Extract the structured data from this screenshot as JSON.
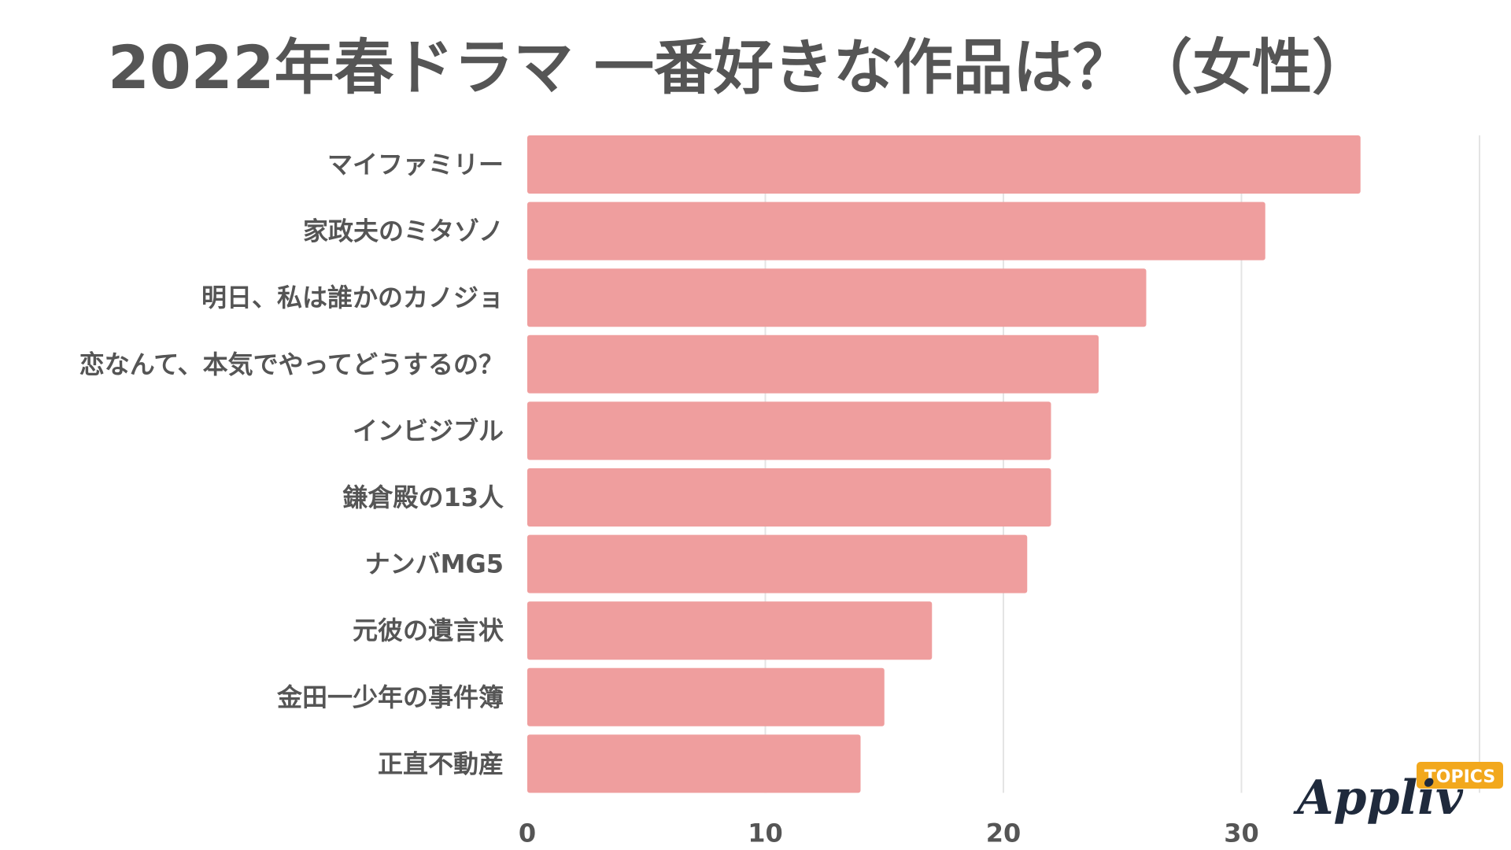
{
  "chart_data": {
    "type": "bar",
    "orientation": "horizontal",
    "title": "2022年春ドラマ 一番好きな作品は？（女性）",
    "categories": [
      "マイファミリー",
      "家政夫のミタゾノ",
      "明日、私は誰かのカノジョ",
      "恋なんて、本気でやってどうするの？",
      "インビジブル",
      "鎌倉殿の13人",
      "ナンバMG5",
      "元彼の遺言状",
      "金田一少年の事件簿",
      "正直不動産"
    ],
    "values": [
      35,
      31,
      26,
      24,
      22,
      22,
      21,
      17,
      15,
      14
    ],
    "xlim": [
      0,
      40
    ],
    "xticks": [
      "0",
      "10",
      "20",
      "30"
    ],
    "grid": true,
    "bar_color": "#ef9e9e"
  },
  "logo": {
    "text": "Appliv",
    "tag": "TOPICS",
    "tag_color": "#f2a81d"
  }
}
